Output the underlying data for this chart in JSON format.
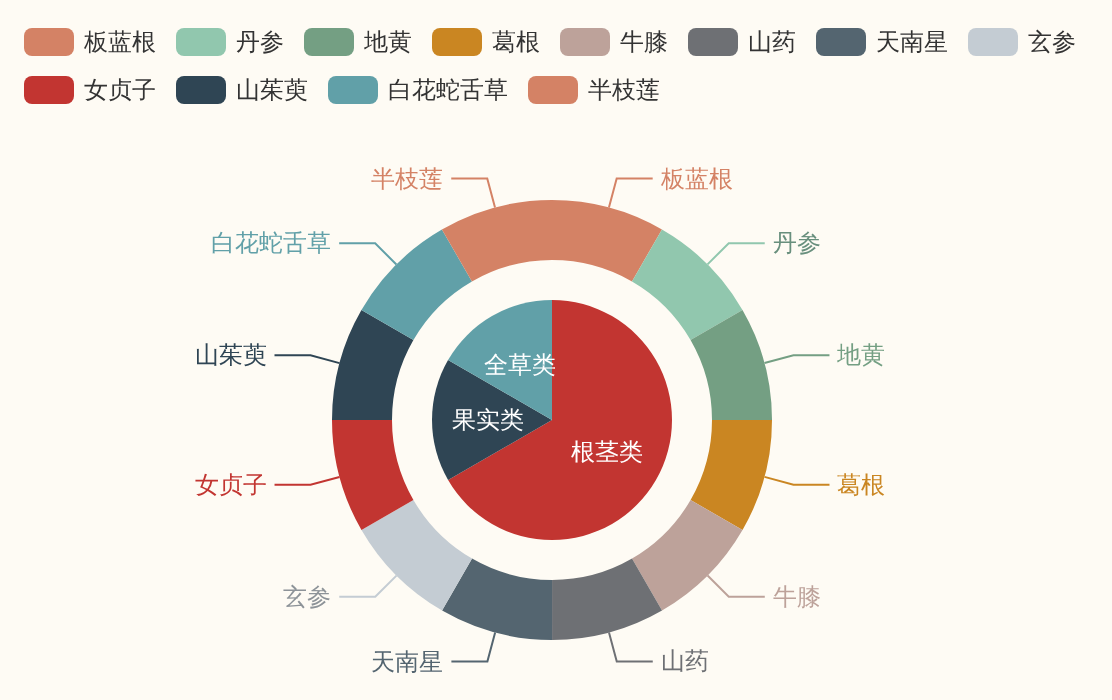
{
  "chart_data": [
    {
      "type": "pie",
      "categories": [
        "根茎类",
        "果实类",
        "全草类"
      ],
      "values": [
        66.66,
        16.67,
        16.67
      ],
      "colors": [
        "#c23531",
        "#2f4554",
        "#61a0a8"
      ]
    },
    {
      "type": "donut",
      "categories": [
        "板蓝根",
        "丹参",
        "地黄",
        "葛根",
        "牛膝",
        "山药",
        "天南星",
        "玄参",
        "女贞子",
        "山茱萸",
        "白花蛇舌草",
        "半枝莲"
      ],
      "values": [
        8.33,
        8.33,
        8.33,
        8.34,
        8.33,
        8.33,
        8.33,
        8.34,
        8.33,
        8.33,
        8.33,
        8.34
      ],
      "colors": [
        "#d48265",
        "#91c7ae",
        "#749f83",
        "#ca8622",
        "#bda29a",
        "#6e7074",
        "#546570",
        "#c4ccd3",
        "#c23531",
        "#2f4554",
        "#61a0a8",
        "#d48265"
      ],
      "legend": "top"
    }
  ]
}
